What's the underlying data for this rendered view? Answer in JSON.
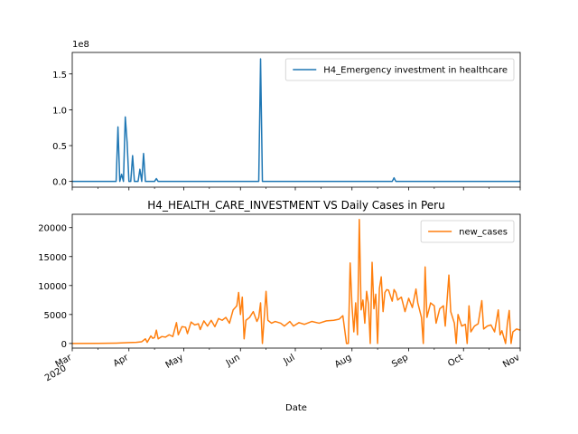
{
  "chart_data": [
    {
      "type": "line",
      "title": "",
      "xlabel": "",
      "ylabel": "",
      "y_offset_label": "1e8",
      "ylim": [
        -0.08,
        1.8
      ],
      "yticks": [
        0.0,
        0.5,
        1.0,
        1.5
      ],
      "ytick_labels": [
        "0.0",
        "0.5",
        "1.0",
        "1.5"
      ],
      "legend_position": "upper right",
      "series": [
        {
          "name": "H4_Emergency investment in healthcare",
          "color": "#1f77b4",
          "points": [
            [
              "2020-03-01",
              0.0
            ],
            [
              "2020-03-25",
              0.0
            ],
            [
              "2020-03-26",
              0.76
            ],
            [
              "2020-03-27",
              0.0
            ],
            [
              "2020-03-28",
              0.1
            ],
            [
              "2020-03-29",
              0.0
            ],
            [
              "2020-03-30",
              0.9
            ],
            [
              "2020-03-31",
              0.55
            ],
            [
              "2020-04-01",
              0.0
            ],
            [
              "2020-04-02",
              0.0
            ],
            [
              "2020-04-03",
              0.36
            ],
            [
              "2020-04-04",
              0.0
            ],
            [
              "2020-04-05",
              0.0
            ],
            [
              "2020-04-06",
              0.0
            ],
            [
              "2020-04-07",
              0.17
            ],
            [
              "2020-04-08",
              0.0
            ],
            [
              "2020-04-09",
              0.39
            ],
            [
              "2020-04-10",
              0.0
            ],
            [
              "2020-04-15",
              0.0
            ],
            [
              "2020-04-16",
              0.04
            ],
            [
              "2020-04-17",
              0.0
            ],
            [
              "2020-06-11",
              0.0
            ],
            [
              "2020-06-12",
              1.71
            ],
            [
              "2020-06-13",
              0.0
            ],
            [
              "2020-08-23",
              0.0
            ],
            [
              "2020-08-24",
              0.05
            ],
            [
              "2020-08-25",
              0.0
            ],
            [
              "2020-11-01",
              0.0
            ]
          ]
        }
      ]
    },
    {
      "type": "line",
      "title": "H4_HEALTH_CARE_INVESTMENT VS Daily Cases in Peru",
      "xlabel": "Date",
      "ylabel": "",
      "ylim": [
        -800,
        22300
      ],
      "yticks": [
        0,
        5000,
        10000,
        15000,
        20000
      ],
      "ytick_labels": [
        "0",
        "5000",
        "10000",
        "15000",
        "20000"
      ],
      "legend_position": "upper right",
      "series": [
        {
          "name": "new_cases",
          "color": "#ff7f0e",
          "points": [
            [
              "2020-03-01",
              0
            ],
            [
              "2020-03-15",
              10
            ],
            [
              "2020-03-25",
              60
            ],
            [
              "2020-04-01",
              150
            ],
            [
              "2020-04-05",
              200
            ],
            [
              "2020-04-08",
              300
            ],
            [
              "2020-04-10",
              800
            ],
            [
              "2020-04-11",
              200
            ],
            [
              "2020-04-13",
              1300
            ],
            [
              "2020-04-14",
              900
            ],
            [
              "2020-04-15",
              1000
            ],
            [
              "2020-04-16",
              2300
            ],
            [
              "2020-04-17",
              800
            ],
            [
              "2020-04-19",
              1200
            ],
            [
              "2020-04-21",
              1100
            ],
            [
              "2020-04-23",
              1500
            ],
            [
              "2020-04-25",
              1200
            ],
            [
              "2020-04-27",
              3600
            ],
            [
              "2020-04-28",
              1500
            ],
            [
              "2020-04-30",
              2900
            ],
            [
              "2020-05-02",
              2800
            ],
            [
              "2020-05-03",
              1700
            ],
            [
              "2020-05-05",
              3700
            ],
            [
              "2020-05-07",
              3200
            ],
            [
              "2020-05-09",
              3400
            ],
            [
              "2020-05-10",
              2400
            ],
            [
              "2020-05-12",
              3900
            ],
            [
              "2020-05-14",
              3000
            ],
            [
              "2020-05-16",
              4000
            ],
            [
              "2020-05-18",
              2900
            ],
            [
              "2020-05-20",
              4300
            ],
            [
              "2020-05-22",
              4000
            ],
            [
              "2020-05-24",
              4500
            ],
            [
              "2020-05-26",
              3500
            ],
            [
              "2020-05-28",
              5800
            ],
            [
              "2020-05-30",
              6500
            ],
            [
              "2020-05-31",
              8800
            ],
            [
              "2020-06-01",
              5000
            ],
            [
              "2020-06-02",
              8000
            ],
            [
              "2020-06-03",
              800
            ],
            [
              "2020-06-04",
              4000
            ],
            [
              "2020-06-06",
              4500
            ],
            [
              "2020-06-08",
              5500
            ],
            [
              "2020-06-10",
              3800
            ],
            [
              "2020-06-11",
              4500
            ],
            [
              "2020-06-12",
              7000
            ],
            [
              "2020-06-13",
              0
            ],
            [
              "2020-06-14",
              4500
            ],
            [
              "2020-06-15",
              9000
            ],
            [
              "2020-06-16",
              4000
            ],
            [
              "2020-06-18",
              3500
            ],
            [
              "2020-06-20",
              3800
            ],
            [
              "2020-06-23",
              3500
            ],
            [
              "2020-06-25",
              3000
            ],
            [
              "2020-06-28",
              3800
            ],
            [
              "2020-06-30",
              3000
            ],
            [
              "2020-07-03",
              3600
            ],
            [
              "2020-07-06",
              3300
            ],
            [
              "2020-07-10",
              3800
            ],
            [
              "2020-07-14",
              3500
            ],
            [
              "2020-07-18",
              3900
            ],
            [
              "2020-07-22",
              4000
            ],
            [
              "2020-07-25",
              4200
            ],
            [
              "2020-07-27",
              4800
            ],
            [
              "2020-07-29",
              0
            ],
            [
              "2020-07-30",
              0
            ],
            [
              "2020-07-31",
              13900
            ],
            [
              "2020-08-01",
              6500
            ],
            [
              "2020-08-02",
              2000
            ],
            [
              "2020-08-03",
              7000
            ],
            [
              "2020-08-04",
              1500
            ],
            [
              "2020-08-05",
              21400
            ],
            [
              "2020-08-06",
              5800
            ],
            [
              "2020-08-07",
              7500
            ],
            [
              "2020-08-08",
              3500
            ],
            [
              "2020-08-09",
              9000
            ],
            [
              "2020-08-10",
              6800
            ],
            [
              "2020-08-11",
              0
            ],
            [
              "2020-08-12",
              14000
            ],
            [
              "2020-08-13",
              6000
            ],
            [
              "2020-08-14",
              8500
            ],
            [
              "2020-08-15",
              0
            ],
            [
              "2020-08-16",
              9500
            ],
            [
              "2020-08-17",
              11500
            ],
            [
              "2020-08-18",
              5500
            ],
            [
              "2020-08-19",
              8800
            ],
            [
              "2020-08-20",
              9300
            ],
            [
              "2020-08-21",
              9200
            ],
            [
              "2020-08-23",
              7300
            ],
            [
              "2020-08-24",
              9300
            ],
            [
              "2020-08-25",
              8800
            ],
            [
              "2020-08-26",
              7500
            ],
            [
              "2020-08-28",
              8000
            ],
            [
              "2020-08-30",
              5500
            ],
            [
              "2020-09-01",
              7800
            ],
            [
              "2020-09-03",
              6200
            ],
            [
              "2020-09-05",
              9400
            ],
            [
              "2020-09-06",
              7000
            ],
            [
              "2020-09-08",
              4500
            ],
            [
              "2020-09-09",
              0
            ],
            [
              "2020-09-10",
              13200
            ],
            [
              "2020-09-11",
              4500
            ],
            [
              "2020-09-13",
              7000
            ],
            [
              "2020-09-15",
              6500
            ],
            [
              "2020-09-16",
              3500
            ],
            [
              "2020-09-18",
              6000
            ],
            [
              "2020-09-20",
              6500
            ],
            [
              "2020-09-21",
              3000
            ],
            [
              "2020-09-23",
              11800
            ],
            [
              "2020-09-24",
              5500
            ],
            [
              "2020-09-26",
              3500
            ],
            [
              "2020-09-27",
              0
            ],
            [
              "2020-09-28",
              5000
            ],
            [
              "2020-09-30",
              3000
            ],
            [
              "2020-10-02",
              3300
            ],
            [
              "2020-10-03",
              0
            ],
            [
              "2020-10-04",
              6500
            ],
            [
              "2020-10-05",
              2000
            ],
            [
              "2020-10-07",
              3000
            ],
            [
              "2020-10-09",
              3400
            ],
            [
              "2020-10-11",
              7400
            ],
            [
              "2020-10-12",
              2500
            ],
            [
              "2020-10-14",
              3000
            ],
            [
              "2020-10-16",
              3200
            ],
            [
              "2020-10-18",
              2000
            ],
            [
              "2020-10-20",
              5800
            ],
            [
              "2020-10-21",
              1500
            ],
            [
              "2020-10-22",
              2200
            ],
            [
              "2020-10-24",
              0
            ],
            [
              "2020-10-25",
              3500
            ],
            [
              "2020-10-26",
              5700
            ],
            [
              "2020-10-27",
              0
            ],
            [
              "2020-10-28",
              2000
            ],
            [
              "2020-10-30",
              2500
            ],
            [
              "2020-11-01",
              2300
            ]
          ]
        }
      ]
    }
  ],
  "x_axis": {
    "range": [
      "2020-03-01",
      "2020-11-01"
    ],
    "ticks": [
      {
        "date": "2020-03-01",
        "label": "Mar",
        "sublabel": "2020"
      },
      {
        "date": "2020-04-01",
        "label": "Apr",
        "sublabel": ""
      },
      {
        "date": "2020-05-01",
        "label": "May",
        "sublabel": ""
      },
      {
        "date": "2020-06-01",
        "label": "Jun",
        "sublabel": ""
      },
      {
        "date": "2020-07-01",
        "label": "Jul",
        "sublabel": ""
      },
      {
        "date": "2020-08-01",
        "label": "Aug",
        "sublabel": ""
      },
      {
        "date": "2020-09-01",
        "label": "Sep",
        "sublabel": ""
      },
      {
        "date": "2020-10-01",
        "label": "Oct",
        "sublabel": ""
      },
      {
        "date": "2020-11-01",
        "label": "Nov",
        "sublabel": ""
      }
    ]
  }
}
